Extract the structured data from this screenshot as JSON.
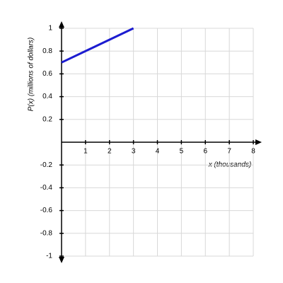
{
  "chart_data": {
    "type": "line",
    "x_label": "x (thousands)",
    "y_label": "P(x) (millions of dollars)",
    "x": [
      0,
      3
    ],
    "values": [
      0.7,
      1
    ],
    "color": "#1c1cd0",
    "xlim": [
      0,
      8
    ],
    "xticks": [
      1,
      2,
      3,
      4,
      5,
      6,
      7,
      8
    ],
    "ylim": [
      -1,
      1
    ],
    "yticks": [
      -1,
      -0.8,
      -0.6,
      -0.4,
      -0.2,
      0.2,
      0.4,
      0.6,
      0.8,
      1
    ],
    "grid": true
  }
}
